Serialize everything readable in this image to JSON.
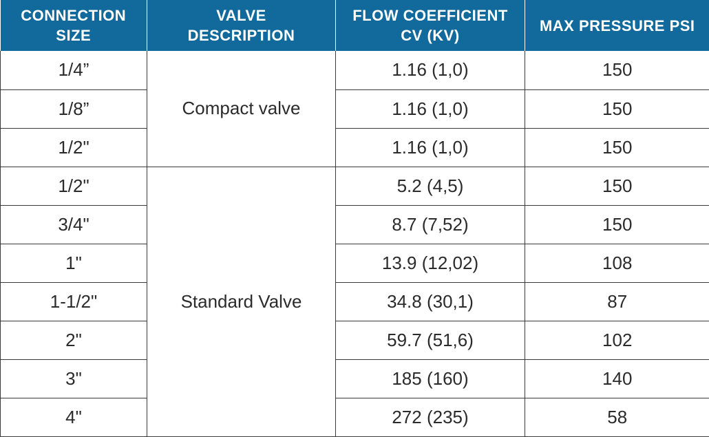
{
  "headers": {
    "connection_size": [
      "CONNECTION",
      "SIZE"
    ],
    "valve_description": [
      "VALVE",
      "DESCRIPTION"
    ],
    "flow_coefficient": [
      "FLOW COEFFICIENT",
      "CV (KV)"
    ],
    "max_pressure": "MAX PRESSURE PSI"
  },
  "groups": {
    "compact": "Compact valve",
    "standard": "Standard Valve"
  },
  "rows": [
    {
      "size": "1/4”",
      "flow": "1.16 (1,0)",
      "pressure": "150"
    },
    {
      "size": "1/8”",
      "flow": "1.16 (1,0)",
      "pressure": "150"
    },
    {
      "size": "1/2\"",
      "flow": "1.16 (1,0)",
      "pressure": "150"
    },
    {
      "size": "1/2\"",
      "flow": "5.2 (4,5)",
      "pressure": "150"
    },
    {
      "size": "3/4\"",
      "flow": "8.7 (7,52)",
      "pressure": "150"
    },
    {
      "size": "1\"",
      "flow": "13.9 (12,02)",
      "pressure": "108"
    },
    {
      "size": "1-1/2\"",
      "flow": "34.8 (30,1)",
      "pressure": "87"
    },
    {
      "size": "2\"",
      "flow": "59.7 (51,6)",
      "pressure": "102"
    },
    {
      "size": "3\"",
      "flow": "185 (160)",
      "pressure": "140"
    },
    {
      "size": "4\"",
      "flow": "272 (235)",
      "pressure": "58"
    }
  ],
  "colors": {
    "header_bg": "#116a9b",
    "header_text": "#ffffff",
    "body_text": "#2b2b2b",
    "grid": "#3a3a3a"
  }
}
